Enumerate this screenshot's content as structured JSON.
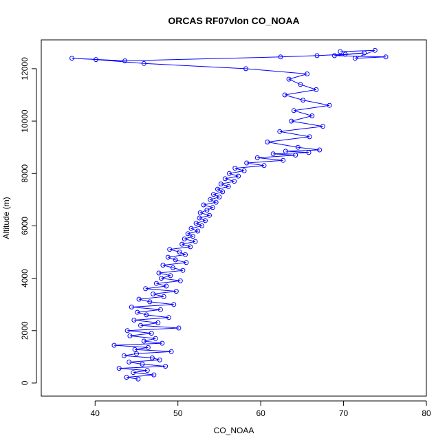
{
  "chart_data": {
    "type": "line",
    "title": "ORCAS RF07vlon CO_NOAA",
    "xlabel": "CO_NOAA",
    "ylabel": "Altitude (m)",
    "xlim": [
      33.5,
      80
    ],
    "ylim": [
      -500,
      13100
    ],
    "x_ticks": [
      40,
      50,
      60,
      70,
      80
    ],
    "y_ticks": [
      0,
      2000,
      4000,
      6000,
      8000,
      10000,
      12000
    ],
    "x_tick_labels": [
      "40",
      "50",
      "60",
      "70",
      "80"
    ],
    "y_tick_labels": [
      "0",
      "2000",
      "4000",
      "6000",
      "8000",
      "10000",
      "12000"
    ],
    "grid": false,
    "series": [
      {
        "color": "#0000ff",
        "marker": "open-circle",
        "line": true,
        "x": [
          45.2,
          43.8,
          47.1,
          44.6,
          46.3,
          42.9,
          48.5,
          45.7,
          44.1,
          47.8,
          46.9,
          43.5,
          45.0,
          49.2,
          44.8,
          46.4,
          42.3,
          48.1,
          45.9,
          47.3,
          44.2,
          46.8,
          43.9,
          50.1,
          45.5,
          47.6,
          44.7,
          48.9,
          46.2,
          45.1,
          47.9,
          44.4,
          49.5,
          46.6,
          45.3,
          48.3,
          47.0,
          49.8,
          46.1,
          48.6,
          47.4,
          50.3,
          48.0,
          49.1,
          47.7,
          50.6,
          49.4,
          48.2,
          51.0,
          49.7,
          48.8,
          50.9,
          50.2,
          49.0,
          51.5,
          50.5,
          52.1,
          50.8,
          51.8,
          51.2,
          52.4,
          51.6,
          52.9,
          52.2,
          53.3,
          52.6,
          53.8,
          52.7,
          53.5,
          54.2,
          53.1,
          54.6,
          53.9,
          55.0,
          54.3,
          55.4,
          54.8,
          56.1,
          55.2,
          56.8,
          55.7,
          57.3,
          56.2,
          58.0,
          56.9,
          60.4,
          58.3,
          62.7,
          59.6,
          64.2,
          61.5,
          65.8,
          63.0,
          67.1,
          64.5,
          60.8,
          65.9,
          62.3,
          67.5,
          63.7,
          66.2,
          64.0,
          68.3,
          65.1,
          62.9,
          66.7,
          64.8,
          63.4,
          65.6,
          58.2,
          45.9,
          40.1,
          37.2,
          43.6,
          62.4,
          66.8,
          70.2,
          72.5,
          68.9,
          75.1,
          71.4,
          73.8,
          69.6
        ],
        "y": [
          150,
          220,
          310,
          400,
          480,
          560,
          640,
          720,
          800,
          880,
          960,
          1040,
          1120,
          1200,
          1280,
          1360,
          1440,
          1520,
          1600,
          1700,
          1800,
          1900,
          2000,
          2100,
          2200,
          2300,
          2400,
          2500,
          2600,
          2700,
          2800,
          2900,
          3000,
          3100,
          3200,
          3300,
          3400,
          3500,
          3600,
          3700,
          3800,
          3900,
          4000,
          4100,
          4200,
          4300,
          4400,
          4500,
          4600,
          4700,
          4800,
          4900,
          5000,
          5100,
          5200,
          5300,
          5400,
          5500,
          5600,
          5700,
          5800,
          5900,
          6000,
          6100,
          6200,
          6300,
          6400,
          6500,
          6600,
          6700,
          6800,
          6900,
          7000,
          7100,
          7200,
          7300,
          7400,
          7500,
          7600,
          7700,
          7800,
          7900,
          8000,
          8100,
          8200,
          8300,
          8400,
          8500,
          8600,
          8700,
          8750,
          8800,
          8850,
          8900,
          9000,
          9200,
          9400,
          9600,
          9800,
          10000,
          10200,
          10400,
          10600,
          10800,
          11000,
          11200,
          11400,
          11600,
          11800,
          12000,
          12200,
          12350,
          12400,
          12300,
          12450,
          12500,
          12550,
          12600,
          12500,
          12450,
          12400,
          12700,
          12650
        ]
      }
    ]
  }
}
